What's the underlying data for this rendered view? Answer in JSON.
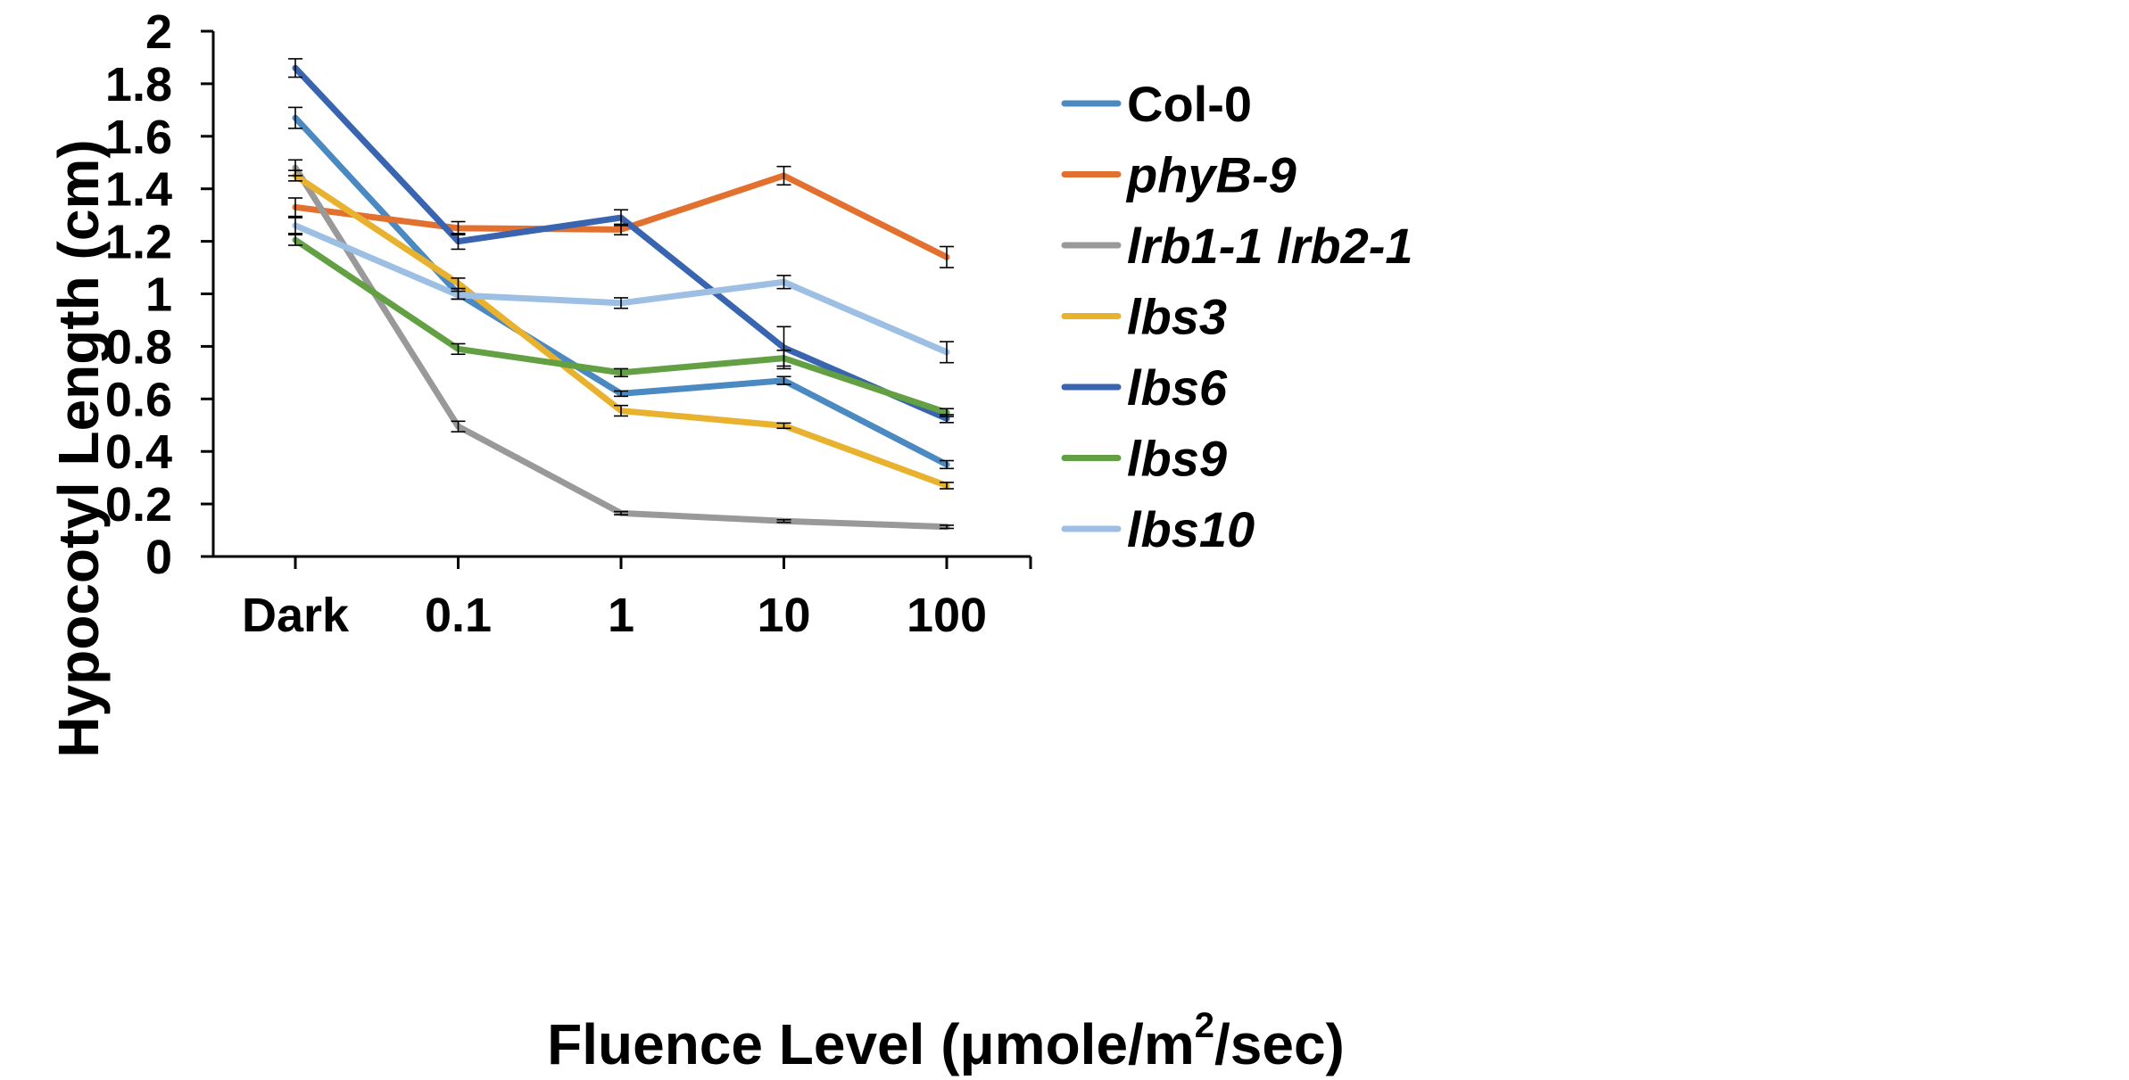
{
  "chart_data": {
    "type": "line",
    "title": "",
    "xlabel": "Fluence Level  (μmole/m²/sec)",
    "xlabel_parts": {
      "before": "Fluence Level  (μmole/m",
      "sup": "2",
      "after": "/sec)"
    },
    "ylabel": "Hypocotyl Length (cm)",
    "ylim": [
      0,
      2
    ],
    "yticks": [
      0,
      0.2,
      0.4,
      0.6,
      0.8,
      1,
      1.2,
      1.4,
      1.6,
      1.8,
      2
    ],
    "ytick_labels": [
      "0",
      "0.2",
      "0.4",
      "0.6",
      "0.8",
      "1",
      "1.2",
      "1.4",
      "1.6",
      "1.8",
      "2"
    ],
    "categories": [
      "Dark",
      "0.1",
      "1",
      "10",
      "100"
    ],
    "grid": false,
    "legend_position": "right",
    "series": [
      {
        "name": "Col-0",
        "italic": false,
        "color": "#4A89C2",
        "values": [
          1.67,
          1.0,
          0.62,
          0.67,
          0.35
        ],
        "errors": [
          0.04,
          0.02,
          0.01,
          0.015,
          0.015
        ]
      },
      {
        "name": "phyB-9",
        "italic": true,
        "color": "#E2712F",
        "values": [
          1.33,
          1.25,
          1.245,
          1.45,
          1.14
        ],
        "errors": [
          0.035,
          0.025,
          0.02,
          0.035,
          0.04
        ]
      },
      {
        "name": "lrb1-1 lrb2-1",
        "italic": true,
        "color": "#999999",
        "values": [
          1.48,
          0.495,
          0.165,
          0.135,
          0.113
        ],
        "errors": [
          0.03,
          0.02,
          0.006,
          0.005,
          0.006
        ]
      },
      {
        "name": "lbs3",
        "italic": true,
        "color": "#E8B12E",
        "values": [
          1.45,
          1.04,
          0.555,
          0.498,
          0.27
        ],
        "errors": [
          0.02,
          0.02,
          0.02,
          0.01,
          0.012
        ]
      },
      {
        "name": "lbs6",
        "italic": true,
        "color": "#3864B0",
        "values": [
          1.86,
          1.2,
          1.29,
          0.795,
          0.525
        ],
        "errors": [
          0.035,
          0.03,
          0.03,
          0.08,
          0.015
        ]
      },
      {
        "name": "lbs9",
        "italic": true,
        "color": "#62A043",
        "values": [
          1.205,
          0.79,
          0.7,
          0.755,
          0.548
        ],
        "errors": [
          0.02,
          0.02,
          0.015,
          0.03,
          0.015
        ]
      },
      {
        "name": "lbs10",
        "italic": true,
        "color": "#9CBFE3",
        "values": [
          1.26,
          0.995,
          0.965,
          1.045,
          0.778
        ],
        "errors": [
          0.03,
          0.015,
          0.02,
          0.025,
          0.04
        ]
      }
    ]
  }
}
